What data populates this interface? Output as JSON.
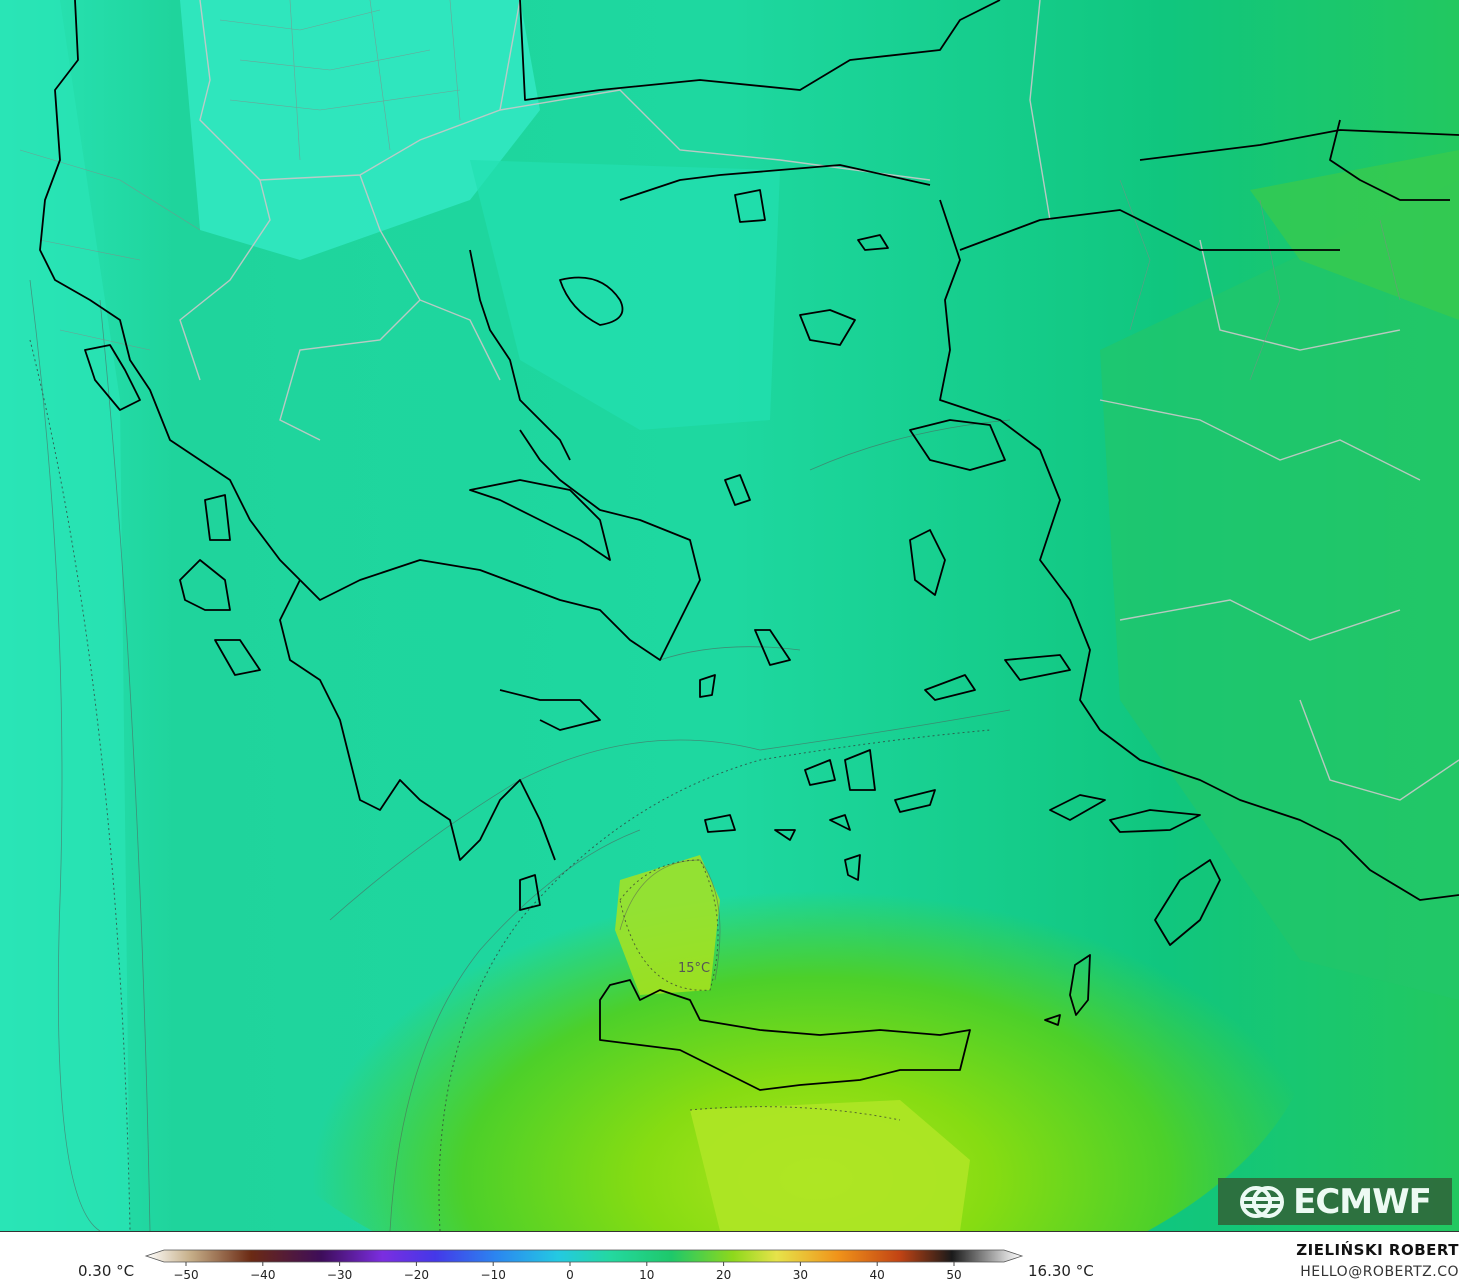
{
  "map": {
    "temp_label": "15°C",
    "colors": {
      "sea_cool": "#2ee8b8",
      "mid": "#1ed29a",
      "land_mid": "#10c67c",
      "warm": "#5cd620",
      "hot": "#a6e31c",
      "coast": "#000000",
      "border": "#c8c8c8"
    }
  },
  "colorbar": {
    "min_value": "0.30 °C",
    "max_value": "16.30 °C",
    "ticks": [
      "−50",
      "−40",
      "−30",
      "−20",
      "−10",
      "0",
      "10",
      "20",
      "30",
      "40",
      "50"
    ]
  },
  "credits": {
    "author": "ZIELIŃSKI ROBERT",
    "email": "HELLO@ROBERTZ.CO"
  },
  "logo": {
    "text": "ECMWF",
    "icon": "ecmwf-logo-icon"
  }
}
